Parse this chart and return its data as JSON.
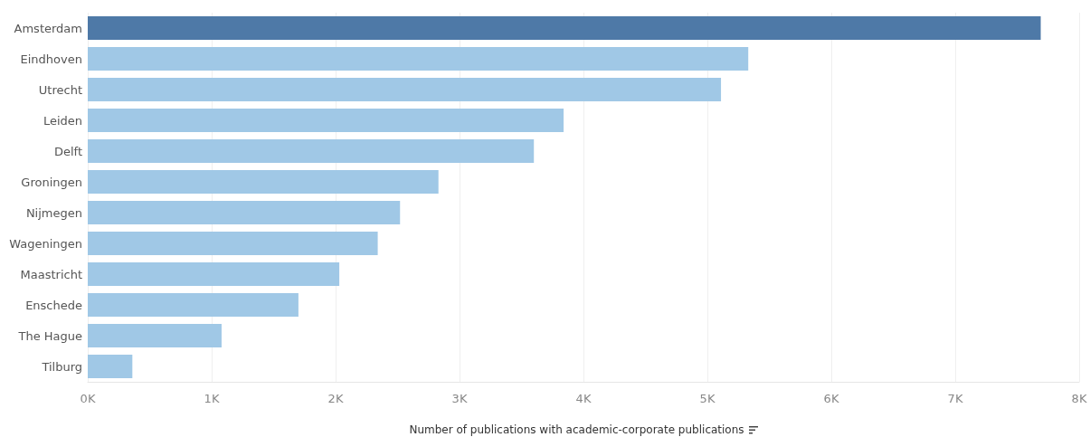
{
  "chart_data": {
    "type": "bar",
    "orientation": "horizontal",
    "xlabel": "Number of publications with academic-corporate publications",
    "categories": [
      "Amsterdam",
      "Eindhoven",
      "Utrecht",
      "Leiden",
      "Delft",
      "Groningen",
      "Nijmegen",
      "Wageningen",
      "Maastricht",
      "Enschede",
      "The Hague",
      "Tilburg"
    ],
    "values": [
      7690,
      5330,
      5110,
      3840,
      3600,
      2830,
      2520,
      2340,
      2030,
      1700,
      1080,
      360
    ],
    "colors": [
      "#4e79a7",
      "#a0c8e6",
      "#a0c8e6",
      "#a0c8e6",
      "#a0c8e6",
      "#a0c8e6",
      "#a0c8e6",
      "#a0c8e6",
      "#a0c8e6",
      "#a0c8e6",
      "#a0c8e6",
      "#a0c8e6"
    ],
    "xlim": [
      0,
      8000
    ],
    "xticks": [
      {
        "value": 0,
        "label": "0K"
      },
      {
        "value": 1000,
        "label": "1K"
      },
      {
        "value": 2000,
        "label": "2K"
      },
      {
        "value": 3000,
        "label": "3K"
      },
      {
        "value": 4000,
        "label": "4K"
      },
      {
        "value": 5000,
        "label": "5K"
      },
      {
        "value": 6000,
        "label": "6K"
      },
      {
        "value": 7000,
        "label": "7K"
      },
      {
        "value": 8000,
        "label": "8K"
      }
    ],
    "grid": "x"
  }
}
